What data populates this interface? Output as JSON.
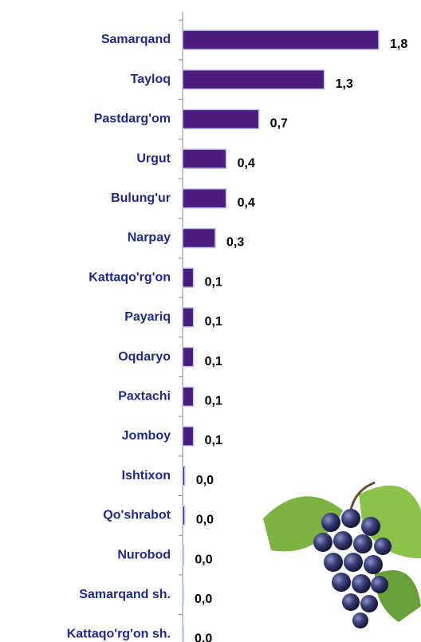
{
  "chart_data": {
    "type": "bar",
    "orientation": "horizontal",
    "categories": [
      "Samarqand",
      "Tayloq",
      "Pastdarg'om",
      "Urgut",
      "Bulung'ur",
      "Narpay",
      "Kattaqo'rg'on",
      "Payariq",
      "Oqdaryo",
      "Paxtachi",
      "Jomboy",
      "Ishtixon",
      "Qo'shrabot",
      "Nurobod",
      "Samarqand sh.",
      "Kattaqo'rg'on sh."
    ],
    "values": [
      1.8,
      1.3,
      0.7,
      0.4,
      0.4,
      0.3,
      0.1,
      0.1,
      0.1,
      0.1,
      0.1,
      0.02,
      0.02,
      0.01,
      0,
      0
    ],
    "value_labels": [
      "1,8",
      "1,3",
      "0,7",
      "0,4",
      "0,4",
      "0,3",
      "0,1",
      "0,1",
      "0,1",
      "0,1",
      "0,1",
      "0,0",
      "0,0",
      "0,0",
      "0,0",
      "0,0"
    ],
    "color": "#4b1c7e"
  }
}
